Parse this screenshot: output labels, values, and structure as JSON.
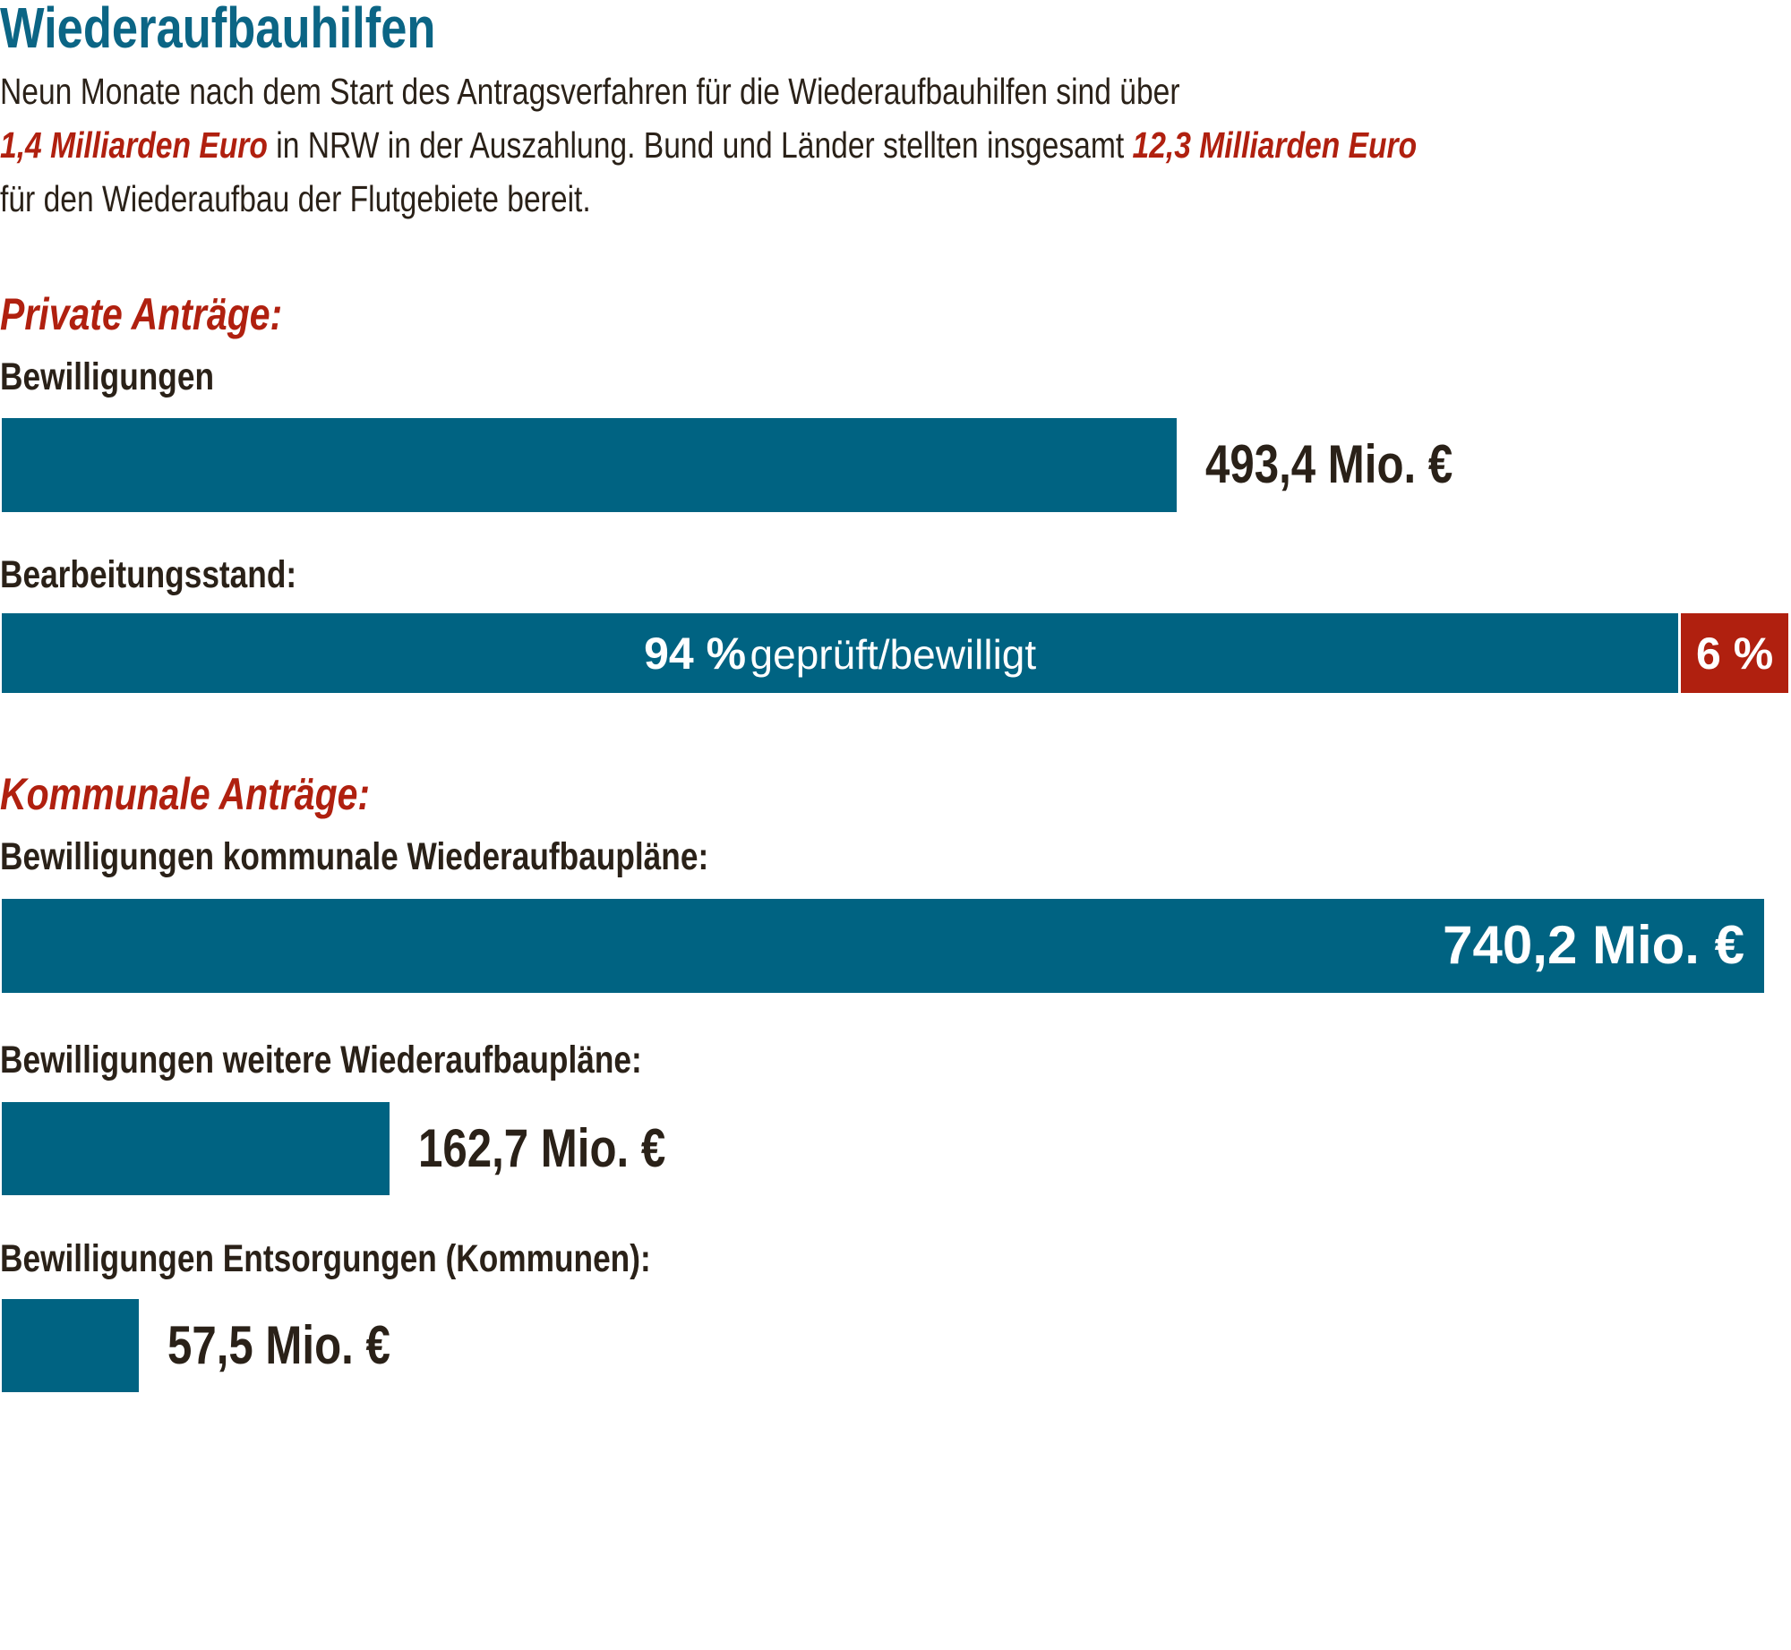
{
  "title": "Wiederaufbauhilfen",
  "intro": {
    "line1": "Neun Monate nach dem Start des Antragsverfahren für die Wiederaufbauhilfen sind über",
    "highlight1": "1,4 Milliarden Euro",
    "line2_mid": " in NRW in der Auszahlung. Bund und Länder stellten insgesamt ",
    "highlight2": "12,3 Milliarden Euro",
    "line3": "für den Wiederaufbau der Flutgebiete bereit."
  },
  "colors": {
    "bar": "#006382",
    "accent": "#b0200f",
    "title": "#0b6585",
    "text": "#2a2118"
  },
  "chart_data": [
    {
      "type": "bar",
      "section": "Private Anträge:",
      "label": "Bewilligungen",
      "value": 493.4,
      "value_label": "493,4 Mio. €",
      "unit": "Mio. €"
    },
    {
      "type": "bar",
      "stacked": true,
      "label": "Bearbeitungsstand:",
      "series": [
        {
          "value": 94,
          "label_value": "94 %",
          "label_text": "geprüft/bewilligt",
          "color": "#006382"
        },
        {
          "value": 6,
          "label_value": "6 %",
          "color": "#b0200f"
        }
      ]
    },
    {
      "type": "bar",
      "section": "Kommunale Anträge:",
      "items": [
        {
          "label": "Bewilligungen kommunale Wiederaufbaupläne:",
          "value": 740.2,
          "value_label": "740,2 Mio. €"
        },
        {
          "label": "Bewilligungen weitere Wiederaufbaupläne:",
          "value": 162.7,
          "value_label": "162,7 Mio. €"
        },
        {
          "label": "Bewilligungen Entsorgungen (Kommunen):",
          "value": 57.5,
          "value_label": "57,5 Mio. €"
        }
      ],
      "unit": "Mio. €"
    }
  ]
}
